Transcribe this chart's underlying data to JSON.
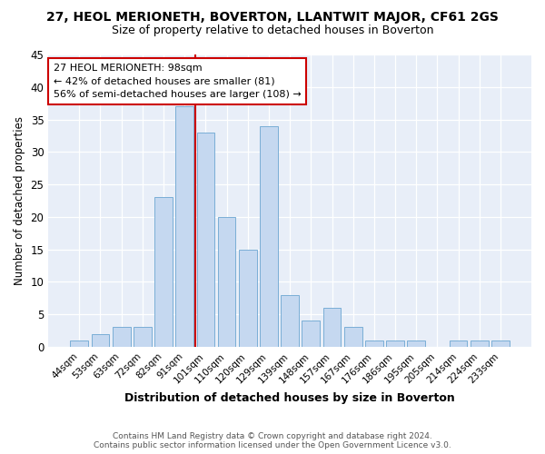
{
  "title": "27, HEOL MERIONETH, BOVERTON, LLANTWIT MAJOR, CF61 2GS",
  "subtitle": "Size of property relative to detached houses in Boverton",
  "xlabel": "Distribution of detached houses by size in Boverton",
  "ylabel": "Number of detached properties",
  "footer_line1": "Contains HM Land Registry data © Crown copyright and database right 2024.",
  "footer_line2": "Contains public sector information licensed under the Open Government Licence v3.0.",
  "categories": [
    "44sqm",
    "53sqm",
    "63sqm",
    "72sqm",
    "82sqm",
    "91sqm",
    "101sqm",
    "110sqm",
    "120sqm",
    "129sqm",
    "139sqm",
    "148sqm",
    "157sqm",
    "167sqm",
    "176sqm",
    "186sqm",
    "195sqm",
    "205sqm",
    "214sqm",
    "224sqm",
    "233sqm"
  ],
  "values": [
    1,
    2,
    3,
    3,
    23,
    37,
    33,
    20,
    15,
    34,
    8,
    4,
    6,
    3,
    1,
    1,
    1,
    0,
    1,
    1,
    1
  ],
  "bar_color": "#c5d8f0",
  "bar_edge_color": "#7aaed6",
  "background_color": "#e8eef8",
  "grid_color": "#ffffff",
  "vline_x": 5.5,
  "vline_color": "#cc0000",
  "annotation_line1": "27 HEOL MERIONETH: 98sqm",
  "annotation_line2": "← 42% of detached houses are smaller (81)",
  "annotation_line3": "56% of semi-detached houses are larger (108) →",
  "annotation_box_color": "#cc0000",
  "ylim": [
    0,
    45
  ],
  "yticks": [
    0,
    5,
    10,
    15,
    20,
    25,
    30,
    35,
    40,
    45
  ],
  "fig_bg_color": "#ffffff",
  "title_fontsize": 10,
  "subtitle_fontsize": 9
}
